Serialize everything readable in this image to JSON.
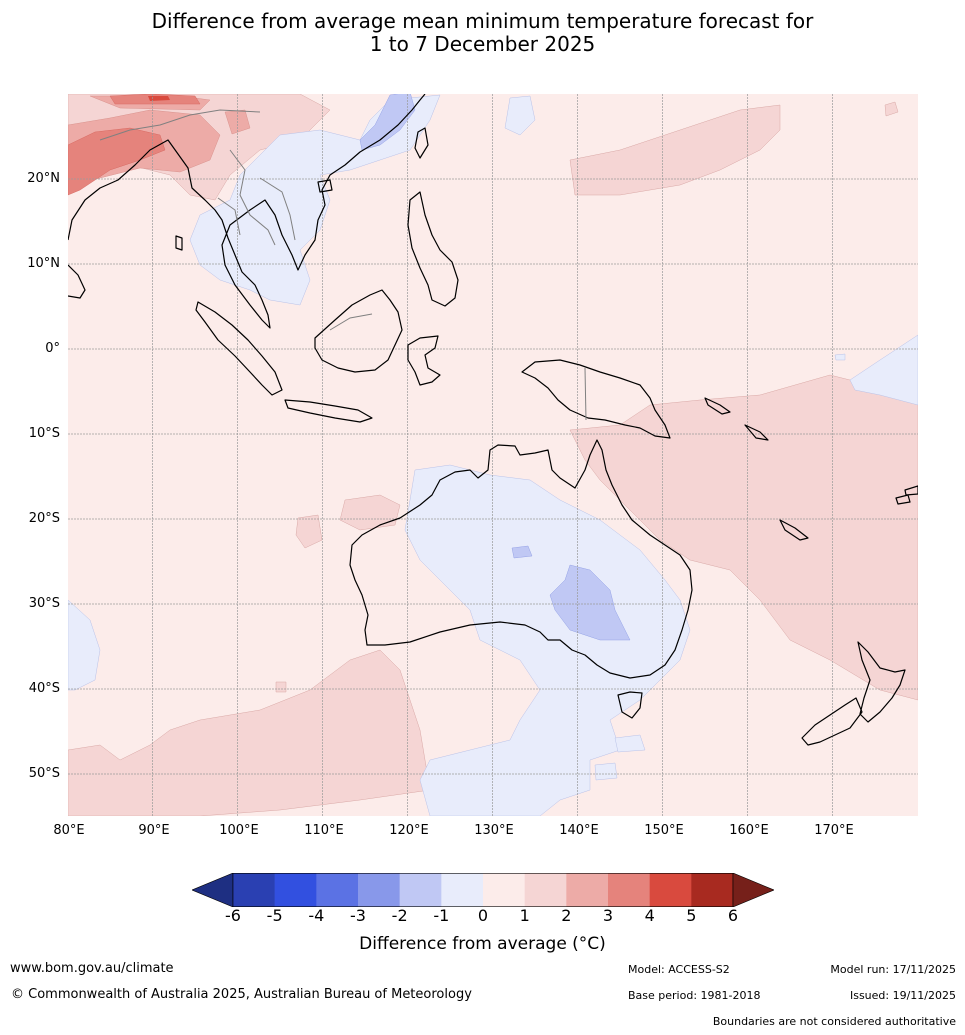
{
  "title_line1": "Difference from average mean minimum temperature forecast for",
  "title_line2": "1 to 7 December 2025",
  "map": {
    "lat_labels": [
      "20°N",
      "10°N",
      "0°",
      "10°S",
      "20°S",
      "30°S",
      "40°S",
      "50°S"
    ],
    "lon_labels": [
      "80°E",
      "90°E",
      "100°E",
      "110°E",
      "120°E",
      "130°E",
      "140°E",
      "150°E",
      "160°E",
      "170°E"
    ],
    "lon_range": [
      80,
      180
    ],
    "lat_range": [
      -55,
      30
    ]
  },
  "colorbar": {
    "title": "Difference from average (°C)",
    "ticks": [
      "-6",
      "-5",
      "-4",
      "-3",
      "-2",
      "-1",
      "0",
      "1",
      "2",
      "3",
      "4",
      "5",
      "6"
    ],
    "colors": [
      "#1e2f82",
      "#2a40b2",
      "#3250e0",
      "#5b72e4",
      "#8898ea",
      "#c0c8f4",
      "#e8ecfb",
      "#fcecea",
      "#f5d5d4",
      "#edaba7",
      "#e5837c",
      "#d94a3e",
      "#a82a20",
      "#76201a"
    ]
  },
  "footer": {
    "website": "www.bom.gov.au/climate",
    "copyright": "© Commonwealth of Australia 2025, Australian Bureau of Meteorology",
    "model": "Model: ACCESS-S2",
    "base_period": "Base period: 1981-2018",
    "model_run": "Model run: 17/11/2025",
    "issued": "Issued: 19/11/2025",
    "disclaimer": "Boundaries are not considered authoritative"
  }
}
